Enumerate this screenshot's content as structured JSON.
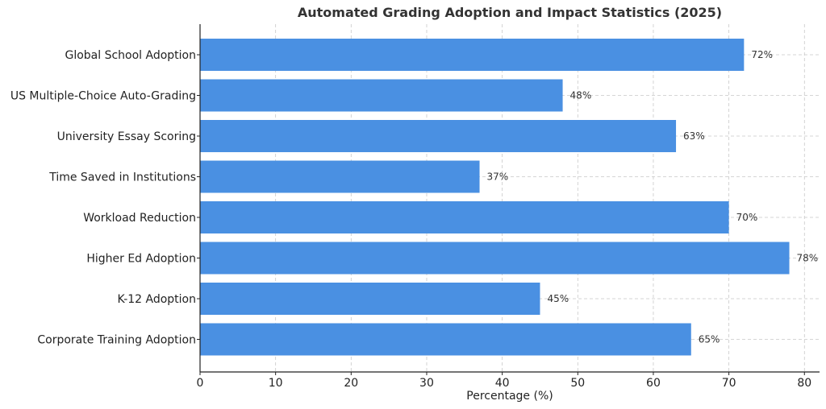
{
  "chart_data": {
    "type": "bar",
    "orientation": "horizontal",
    "title": "Automated Grading Adoption and Impact Statistics (2025)",
    "xlabel": "Percentage (%)",
    "ylabel": "",
    "xlim": [
      0,
      82
    ],
    "xticks": [
      0,
      10,
      20,
      30,
      40,
      50,
      60,
      70,
      80
    ],
    "grid": true,
    "bar_color": "#4a90e2",
    "categories": [
      "Global School Adoption",
      "US Multiple-Choice Auto-Grading",
      "University Essay Scoring",
      "Time Saved in Institutions",
      "Workload Reduction",
      "Higher Ed Adoption",
      "K-12 Adoption",
      "Corporate Training Adoption"
    ],
    "values": [
      72,
      48,
      63,
      37,
      70,
      78,
      45,
      65
    ],
    "value_labels": [
      "72%",
      "48%",
      "63%",
      "37%",
      "70%",
      "78%",
      "45%",
      "65%"
    ]
  }
}
